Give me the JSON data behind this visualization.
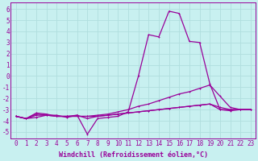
{
  "xlabel": "Windchill (Refroidissement éolien,°C)",
  "bg_color": "#c8f0f0",
  "grid_color": "#b0dede",
  "line_color": "#990099",
  "xlim": [
    -0.5,
    23.5
  ],
  "ylim": [
    -5.6,
    6.6
  ],
  "xticks": [
    0,
    1,
    2,
    3,
    4,
    5,
    6,
    7,
    8,
    9,
    10,
    11,
    12,
    13,
    14,
    15,
    16,
    17,
    18,
    19,
    20,
    21,
    22,
    23
  ],
  "yticks": [
    -5,
    -4,
    -3,
    -2,
    -1,
    0,
    1,
    2,
    3,
    4,
    5,
    6
  ],
  "curve1_x": [
    0,
    1,
    2,
    3,
    4,
    5,
    6,
    7,
    8,
    9,
    10,
    11,
    12,
    13,
    14,
    15,
    16,
    17,
    18,
    19,
    20,
    21,
    22,
    23
  ],
  "curve1_y": [
    -3.6,
    -3.8,
    -3.7,
    -3.5,
    -3.5,
    -3.7,
    -3.5,
    -5.2,
    -3.8,
    -3.7,
    -3.6,
    -3.2,
    0.0,
    3.7,
    3.5,
    5.8,
    5.6,
    3.1,
    3.0,
    -0.7,
    -3.0,
    -3.0,
    -3.0,
    -3.0
  ],
  "curve2_x": [
    0,
    1,
    2,
    3,
    4,
    5,
    6,
    7,
    8,
    9,
    10,
    11,
    12,
    13,
    14,
    15,
    16,
    17,
    18,
    19,
    20,
    21,
    22,
    23
  ],
  "curve2_y": [
    -3.6,
    -3.8,
    -3.3,
    -3.4,
    -3.6,
    -3.6,
    -3.6,
    -3.6,
    -3.5,
    -3.4,
    -3.2,
    -3.0,
    -2.7,
    -2.5,
    -2.2,
    -1.9,
    -1.6,
    -1.4,
    -1.1,
    -0.8,
    -1.8,
    -2.8,
    -3.0,
    -3.0
  ],
  "curve3_x": [
    0,
    1,
    2,
    3,
    4,
    5,
    6,
    7,
    8,
    9,
    10,
    11,
    12,
    13,
    14,
    15,
    16,
    17,
    18,
    19,
    20,
    21,
    22,
    23
  ],
  "curve3_y": [
    -3.6,
    -3.8,
    -3.4,
    -3.5,
    -3.6,
    -3.6,
    -3.6,
    -3.6,
    -3.6,
    -3.5,
    -3.4,
    -3.3,
    -3.2,
    -3.1,
    -3.0,
    -2.9,
    -2.8,
    -2.7,
    -2.6,
    -2.5,
    -3.0,
    -3.1,
    -3.0,
    -3.0
  ],
  "curve4_x": [
    0,
    1,
    2,
    3,
    4,
    5,
    6,
    7,
    8,
    9,
    10,
    11,
    12,
    13,
    14,
    15,
    16,
    17,
    18,
    19,
    20,
    21,
    22,
    23
  ],
  "curve4_y": [
    -3.6,
    -3.8,
    -3.5,
    -3.5,
    -3.6,
    -3.6,
    -3.5,
    -3.8,
    -3.6,
    -3.5,
    -3.4,
    -3.3,
    -3.2,
    -3.1,
    -3.0,
    -2.9,
    -2.8,
    -2.7,
    -2.6,
    -2.5,
    -2.8,
    -3.0,
    -3.0,
    -3.0
  ],
  "marker_size": 2.0,
  "line_width": 0.9,
  "font_size_label": 6.0,
  "font_size_tick": 5.5
}
